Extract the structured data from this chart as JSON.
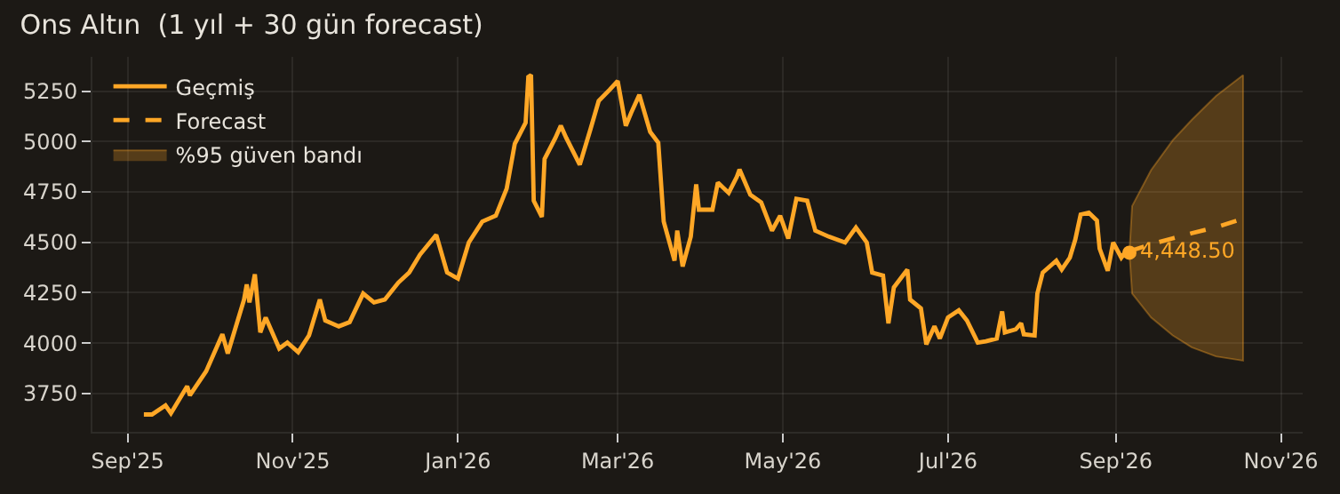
{
  "chart_data": {
    "type": "line",
    "title": "Ons Altın  (1 yıl + 30 gün forecast)",
    "xlim": [
      "2025-08-19",
      "2026-11-09"
    ],
    "xticks": [
      {
        "value": "2025-09-01",
        "label": "Sep'25"
      },
      {
        "value": "2025-11-01",
        "label": "Nov'25"
      },
      {
        "value": "2026-01-01",
        "label": "Jan'26"
      },
      {
        "value": "2026-03-01",
        "label": "Mar'26"
      },
      {
        "value": "2026-05-01",
        "label": "May'26"
      },
      {
        "value": "2026-07-01",
        "label": "Jul'26"
      },
      {
        "value": "2026-09-01",
        "label": "Sep'26"
      },
      {
        "value": "2026-11-01",
        "label": "Nov'26"
      }
    ],
    "ylim": [
      3560,
      5420
    ],
    "yticks": [
      3750,
      4000,
      4250,
      4500,
      4750,
      5000,
      5250
    ],
    "grid": true,
    "legend": "top left",
    "series": [
      {
        "name": "Geçmiş",
        "color": "#ffa726",
        "line_style": "solid",
        "x": [
          "2025-09-07",
          "2025-09-10",
          "2025-09-15",
          "2025-09-17",
          "2025-09-23",
          "2025-09-24",
          "2025-09-30",
          "2025-10-06",
          "2025-10-08",
          "2025-10-14",
          "2025-10-15",
          "2025-10-16",
          "2025-10-18",
          "2025-10-20",
          "2025-10-22",
          "2025-10-27",
          "2025-10-30",
          "2025-11-03",
          "2025-11-07",
          "2025-11-11",
          "2025-11-13",
          "2025-11-18",
          "2025-11-22",
          "2025-11-27",
          "2025-12-01",
          "2025-12-05",
          "2025-12-10",
          "2025-12-14",
          "2025-12-18",
          "2025-12-24",
          "2025-12-28",
          "2026-01-01",
          "2026-01-05",
          "2026-01-10",
          "2026-01-15",
          "2026-01-19",
          "2026-01-22",
          "2026-01-26",
          "2026-01-27",
          "2026-01-28",
          "2026-01-29",
          "2026-02-01",
          "2026-02-02",
          "2026-02-06",
          "2026-02-08",
          "2026-02-10",
          "2026-02-15",
          "2026-02-19",
          "2026-02-22",
          "2026-02-26",
          "2026-03-01",
          "2026-03-04",
          "2026-03-06",
          "2026-03-09",
          "2026-03-13",
          "2026-03-16",
          "2026-03-18",
          "2026-03-22",
          "2026-03-23",
          "2026-03-25",
          "2026-03-28",
          "2026-03-30",
          "2026-03-31",
          "2026-04-05",
          "2026-04-07",
          "2026-04-11",
          "2026-04-14",
          "2026-04-15",
          "2026-04-19",
          "2026-04-23",
          "2026-04-27",
          "2026-04-30",
          "2026-05-03",
          "2026-05-06",
          "2026-05-10",
          "2026-05-13",
          "2026-05-18",
          "2026-05-24",
          "2026-05-28",
          "2026-06-01",
          "2026-06-03",
          "2026-06-07",
          "2026-06-09",
          "2026-06-11",
          "2026-06-16",
          "2026-06-17",
          "2026-06-21",
          "2026-06-23",
          "2026-06-26",
          "2026-06-28",
          "2026-07-01",
          "2026-07-05",
          "2026-07-08",
          "2026-07-12",
          "2026-07-15",
          "2026-07-19",
          "2026-07-21",
          "2026-07-22",
          "2026-07-26",
          "2026-07-28",
          "2026-07-29",
          "2026-08-02",
          "2026-08-03",
          "2026-08-05",
          "2026-08-10",
          "2026-08-12",
          "2026-08-15",
          "2026-08-17",
          "2026-08-19",
          "2026-08-22",
          "2026-08-25",
          "2026-08-26",
          "2026-08-29",
          "2026-08-31",
          "2026-09-03",
          "2026-09-05",
          "2026-09-06"
        ],
        "values": [
          3646,
          3646,
          3691,
          3652,
          3786,
          3741,
          3860,
          4044,
          3949,
          4216,
          4291,
          4202,
          4341,
          4053,
          4127,
          3973,
          4003,
          3955,
          4038,
          4216,
          4112,
          4083,
          4104,
          4246,
          4202,
          4216,
          4300,
          4350,
          4439,
          4537,
          4350,
          4320,
          4499,
          4603,
          4632,
          4766,
          4989,
          5093,
          5321,
          5330,
          4706,
          4626,
          4914,
          5018,
          5078,
          5018,
          4885,
          5063,
          5202,
          5256,
          5300,
          5078,
          5143,
          5232,
          5048,
          4994,
          4603,
          4409,
          4558,
          4380,
          4528,
          4787,
          4662,
          4662,
          4796,
          4745,
          4825,
          4861,
          4736,
          4698,
          4558,
          4632,
          4519,
          4716,
          4707,
          4558,
          4528,
          4499,
          4573,
          4499,
          4350,
          4335,
          4098,
          4276,
          4365,
          4216,
          4172,
          3994,
          4083,
          4023,
          4127,
          4163,
          4112,
          4003,
          4009,
          4023,
          4157,
          4053,
          4068,
          4098,
          4044,
          4038,
          4246,
          4350,
          4409,
          4365,
          4424,
          4513,
          4638,
          4647,
          4608,
          4469,
          4359,
          4499,
          4424,
          4460,
          4448.5
        ]
      },
      {
        "name": "Forecast",
        "color": "#ffa726",
        "line_style": "dashed",
        "x": [
          "2026-09-06",
          "2026-09-07",
          "2026-09-14",
          "2026-09-22",
          "2026-09-29",
          "2026-10-08",
          "2026-10-18"
        ],
        "values": [
          4448.5,
          4460,
          4490,
          4520,
          4545,
          4575,
          4617
        ],
        "lower": [
          4448.5,
          4246,
          4127,
          4038,
          3979,
          3934,
          3913
        ],
        "upper": [
          4448.5,
          4680,
          4858,
          5006,
          5107,
          5226,
          5330
        ]
      }
    ],
    "annotations": [
      {
        "text": "4,448.50",
        "x": "2026-09-06",
        "y": 4448.5
      },
      "%95 güven bandı"
    ]
  }
}
